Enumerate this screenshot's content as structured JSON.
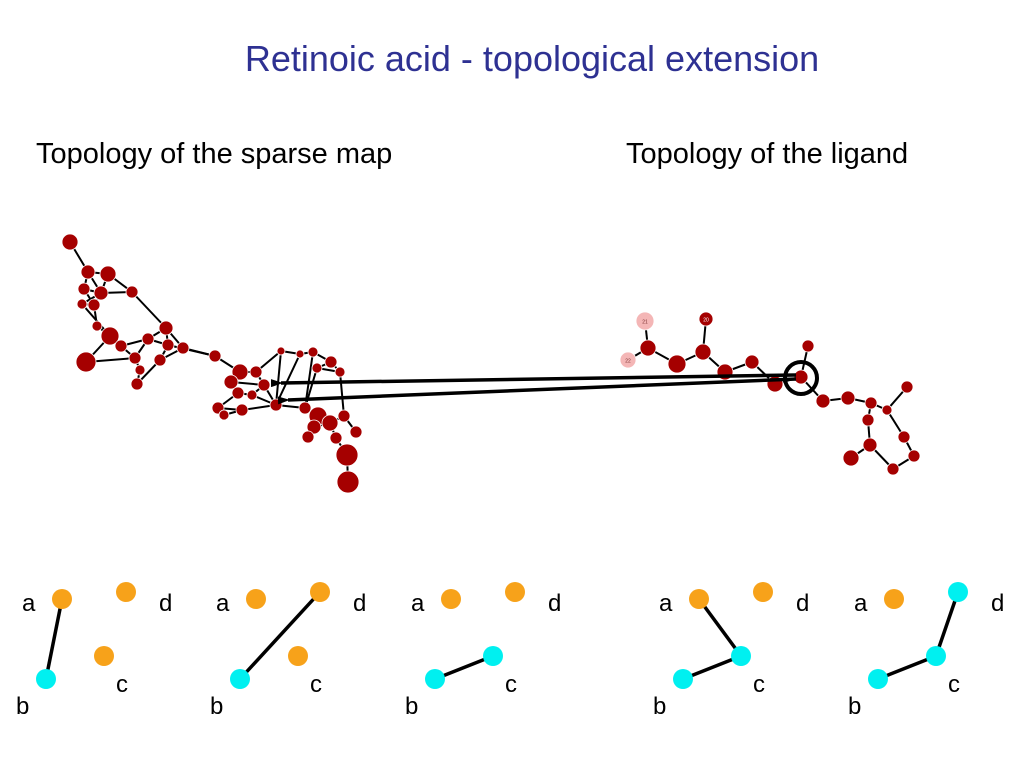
{
  "title": "Retinoic acid - topological extension",
  "subtitle_left": "Topology of the sparse map",
  "subtitle_right": "Topology of the ligand",
  "colors": {
    "title": "#2e3192",
    "node_dark": "#a50000",
    "node_light": "#f4b6b6",
    "node_orange": "#f7a21a",
    "node_cyan": "#00f0f0",
    "edge": "#000000"
  },
  "ligand_node_labels": [
    "21",
    "22",
    "20"
  ],
  "patterns": [
    {
      "labels": [
        "a",
        "b",
        "c",
        "d"
      ],
      "edges": [
        [
          "a",
          "b"
        ]
      ],
      "cyan": [
        "b"
      ]
    },
    {
      "labels": [
        "a",
        "b",
        "c",
        "d"
      ],
      "edges": [
        [
          "b",
          "d"
        ]
      ],
      "cyan": [
        "b"
      ]
    },
    {
      "labels": [
        "a",
        "b",
        "c",
        "d"
      ],
      "edges": [
        [
          "b",
          "c"
        ]
      ],
      "cyan": [
        "b",
        "c"
      ]
    },
    {
      "labels": [
        "a",
        "b",
        "c",
        "d"
      ],
      "edges": [
        [
          "a",
          "c"
        ],
        [
          "b",
          "c"
        ]
      ],
      "cyan": [
        "b",
        "c"
      ]
    },
    {
      "labels": [
        "a",
        "b",
        "c",
        "d"
      ],
      "edges": [
        [
          "b",
          "c"
        ],
        [
          "c",
          "d"
        ]
      ],
      "cyan": [
        "b",
        "c",
        "d"
      ]
    }
  ]
}
